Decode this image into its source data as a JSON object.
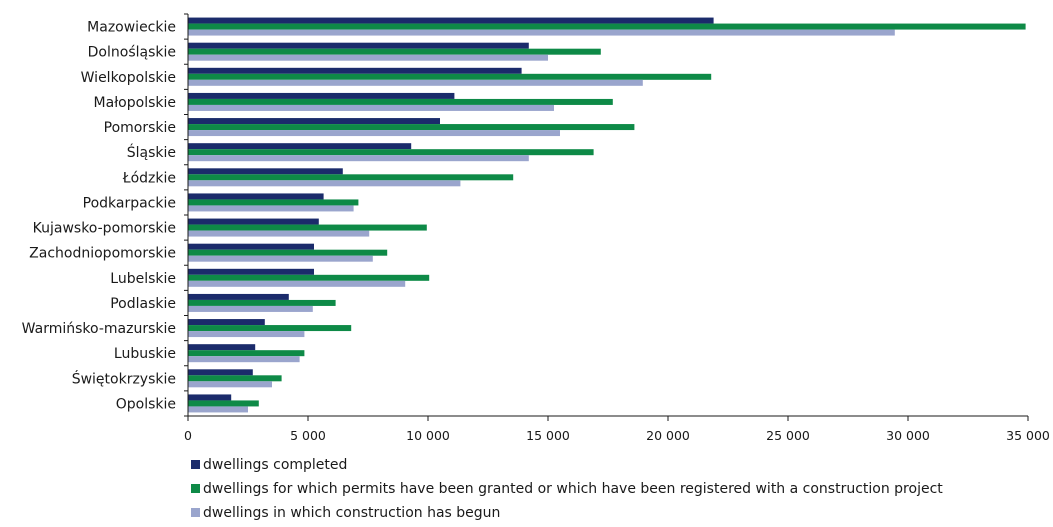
{
  "chart_data": {
    "type": "bar",
    "orientation": "horizontal",
    "categories": [
      "Mazowieckie",
      "Dolnośląskie",
      "Wielkopolskie",
      "Małopolskie",
      "Pomorskie",
      "Śląskie",
      "Łódzkie",
      "Podkarpackie",
      "Kujawsko-pomorskie",
      "Zachodniopomorskie",
      "Lubelskie",
      "Podlaskie",
      "Warmińsko-mazurskie",
      "Lubuskie",
      "Świętokrzyskie",
      "Opolskie"
    ],
    "series": [
      {
        "name": "dwellings completed",
        "color": "#1b2b6b",
        "values": [
          21900,
          14200,
          13900,
          11100,
          10500,
          9300,
          6450,
          5650,
          5450,
          5250,
          5250,
          4200,
          3200,
          2800,
          2700,
          1800
        ]
      },
      {
        "name": "dwellings for which permits have been granted or which have been registered with a construction project",
        "color": "#0e8a47",
        "values": [
          34900,
          17200,
          21800,
          17700,
          18600,
          16900,
          13550,
          7100,
          9950,
          8300,
          10050,
          6150,
          6800,
          4850,
          3900,
          2950
        ]
      },
      {
        "name": "dwellings in which construction has begun",
        "color": "#9aa5cd",
        "values": [
          29450,
          15000,
          18950,
          15250,
          15500,
          14200,
          11350,
          6900,
          7550,
          7700,
          9050,
          5200,
          4850,
          4650,
          3500,
          2500
        ]
      }
    ],
    "x_ticks": [
      "0",
      "5 000",
      "10 000",
      "15 000",
      "20 000",
      "25 000",
      "30 000",
      "35 000"
    ],
    "xlim": [
      0,
      35000
    ],
    "grid": false,
    "legend_position": "bottom-left"
  }
}
